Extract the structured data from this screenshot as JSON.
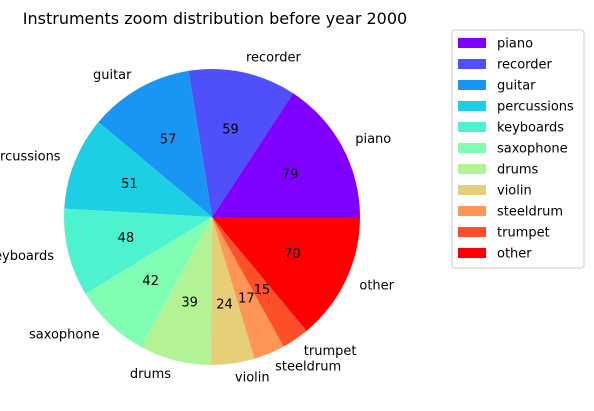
{
  "chart_data": {
    "type": "pie",
    "title": "Instruments zoom distribution before year 2000",
    "start_angle_deg": 0,
    "direction": "counterclockwise",
    "legend_placement": "right",
    "slices": [
      {
        "label": "piano",
        "value": 79,
        "color": "#8000ff"
      },
      {
        "label": "recorder",
        "value": 59,
        "color": "#4f4ffc"
      },
      {
        "label": "guitar",
        "value": 57,
        "color": "#1996f3"
      },
      {
        "label": "percussions",
        "value": 51,
        "color": "#1ccfe4"
      },
      {
        "label": "keyboards",
        "value": 48,
        "color": "#4df3ce"
      },
      {
        "label": "saxophone",
        "value": 42,
        "color": "#80ffb4"
      },
      {
        "label": "drums",
        "value": 39,
        "color": "#b3f396"
      },
      {
        "label": "violin",
        "value": 24,
        "color": "#e6cf78"
      },
      {
        "label": "steeldrum",
        "value": 17,
        "color": "#ff9658"
      },
      {
        "label": "trumpet",
        "value": 15,
        "color": "#ff4f28"
      },
      {
        "label": "other",
        "value": 70,
        "color": "#ff0000"
      }
    ]
  }
}
